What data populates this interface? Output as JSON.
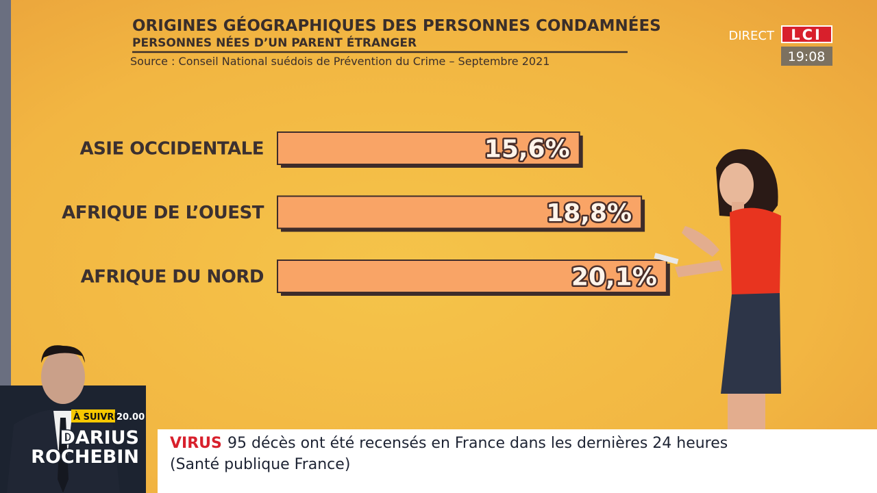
{
  "chart_data": {
    "type": "bar",
    "orientation": "horizontal",
    "title": "ORIGINES GÉOGRAPHIQUES DES PERSONNES CONDAMNÉES",
    "subtitle": "PERSONNES NÉES D’UN PARENT ÉTRANGER",
    "source": "Source : Conseil National suédois de Prévention du Crime – Septembre 2021",
    "categories": [
      "ASIE OCCIDENTALE",
      "AFRIQUE DE L’OUEST",
      "AFRIQUE DU NORD"
    ],
    "values": [
      15.6,
      18.8,
      20.1
    ],
    "value_labels": [
      "15,6%",
      "18,8%",
      "20,1%"
    ],
    "color": "#f9a466"
  },
  "channel": {
    "live": "DIRECT",
    "logo": "LCI",
    "time": "19:08"
  },
  "promo": {
    "label": "À SUIVRE",
    "time": "20.00",
    "name": [
      "DARIUS",
      "ROCHEBIN"
    ]
  },
  "ticker": {
    "tag": "VIRUS",
    "lines": [
      "95 décès ont été recensés en France dans les dernières 24 heures",
      "(Santé publique France)"
    ]
  }
}
